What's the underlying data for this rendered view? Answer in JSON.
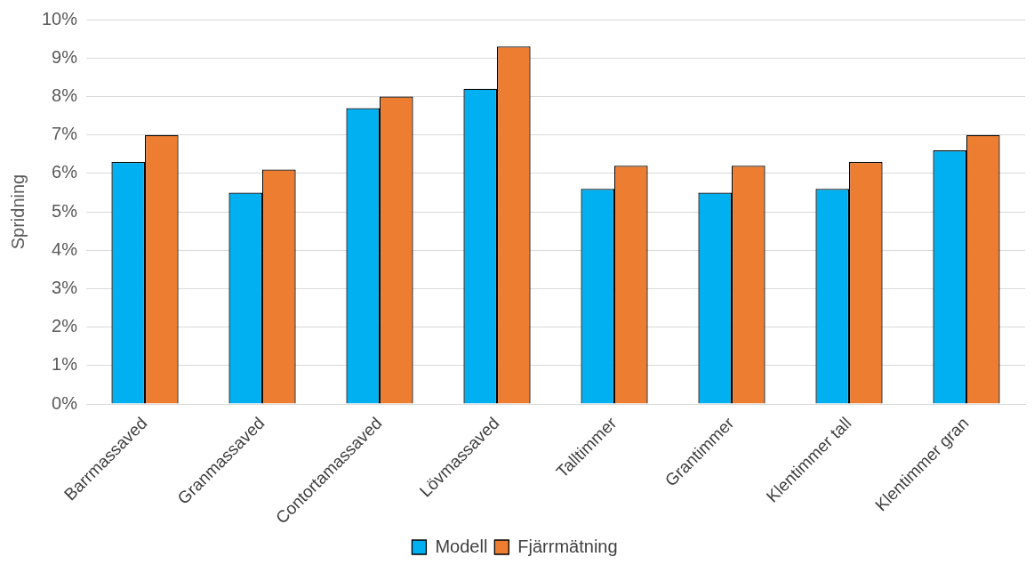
{
  "chart_data": {
    "type": "bar",
    "ylabel": "Spridning",
    "categories": [
      "Barrmassaved",
      "Granmassaved",
      "Contortamassaved",
      "Lövmassaved",
      "Talltimmer",
      "Grantimmer",
      "Klentimmer tall",
      "Klentimmer gran"
    ],
    "series": [
      {
        "name": "Modell",
        "color": "#00b0f0",
        "values": [
          6.3,
          5.5,
          7.7,
          8.2,
          5.6,
          5.5,
          5.6,
          6.6
        ]
      },
      {
        "name": "Fjärrmätning",
        "color": "#ed7d31",
        "values": [
          7.0,
          6.1,
          8.0,
          9.3,
          6.2,
          6.2,
          6.3,
          7.0
        ]
      }
    ],
    "ylim": [
      0,
      10
    ],
    "yticks": [
      {
        "value": 0,
        "label": "0%"
      },
      {
        "value": 1,
        "label": "1%"
      },
      {
        "value": 2,
        "label": "2%"
      },
      {
        "value": 3,
        "label": "3%"
      },
      {
        "value": 4,
        "label": "4%"
      },
      {
        "value": 5,
        "label": "5%"
      },
      {
        "value": 6,
        "label": "6%"
      },
      {
        "value": 7,
        "label": "7%"
      },
      {
        "value": 8,
        "label": "8%"
      },
      {
        "value": 9,
        "label": "9%"
      },
      {
        "value": 10,
        "label": "10%"
      }
    ],
    "grid": "y",
    "legend": "bottom"
  }
}
